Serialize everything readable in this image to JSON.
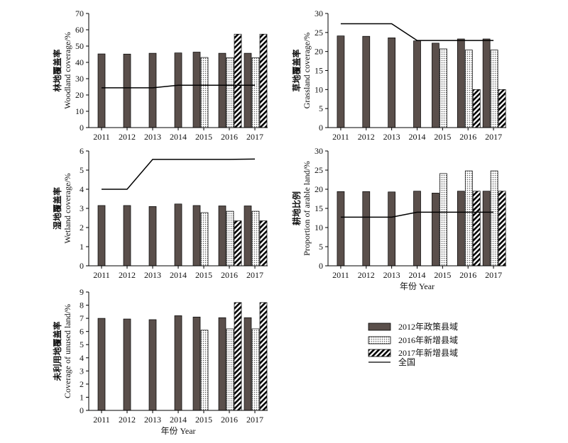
{
  "legend": {
    "items": [
      {
        "label": "2012年政策县域",
        "pattern": "solid"
      },
      {
        "label": "2016年新增县域",
        "pattern": "dots"
      },
      {
        "label": "2017年新增县域",
        "pattern": "hatch"
      },
      {
        "label": "全国",
        "pattern": "line"
      }
    ]
  },
  "colors": {
    "bar_solid": "#5a4f4b",
    "axis": "#000000",
    "hatch": "#000000"
  },
  "chart_data": [
    {
      "type": "bar",
      "ylabel_cn": "林地覆盖率",
      "ylabel_en": "Woodland coverage/%",
      "xlabel": "",
      "categories": [
        "2011",
        "2012",
        "2013",
        "2014",
        "2015",
        "2016",
        "2017"
      ],
      "ylim": [
        0,
        70
      ],
      "yticks": [
        0,
        10,
        20,
        30,
        40,
        50,
        60,
        70
      ],
      "series": [
        {
          "name": "2012年政策县域",
          "values": [
            45.2,
            45.1,
            45.6,
            45.8,
            46.3,
            45.6,
            45.6
          ]
        },
        {
          "name": "2016年新增县域",
          "values": [
            null,
            null,
            null,
            null,
            43.0,
            42.9,
            42.9
          ]
        },
        {
          "name": "2017年新增县域",
          "values": [
            null,
            null,
            null,
            null,
            null,
            57.3,
            57.3
          ]
        }
      ],
      "line": {
        "name": "全国",
        "values": [
          24.4,
          24.4,
          24.4,
          26.0,
          26.0,
          26.0,
          26.0
        ]
      }
    },
    {
      "type": "bar",
      "ylabel_cn": "草地覆盖率",
      "ylabel_en": "Grassland coverage/%",
      "xlabel": "",
      "categories": [
        "2011",
        "2012",
        "2013",
        "2014",
        "2015",
        "2016",
        "2017"
      ],
      "ylim": [
        0,
        30
      ],
      "yticks": [
        0,
        5,
        10,
        15,
        20,
        25,
        30
      ],
      "series": [
        {
          "name": "2012年政策县域",
          "values": [
            24.1,
            24.0,
            23.6,
            22.8,
            22.2,
            23.3,
            23.3
          ]
        },
        {
          "name": "2016年新增县域",
          "values": [
            null,
            null,
            null,
            null,
            20.7,
            20.4,
            20.4
          ]
        },
        {
          "name": "2017年新增县域",
          "values": [
            null,
            null,
            null,
            null,
            null,
            10.0,
            10.0
          ]
        }
      ],
      "line": {
        "name": "全国",
        "values": [
          27.3,
          27.3,
          27.3,
          22.9,
          22.9,
          22.9,
          22.9
        ]
      }
    },
    {
      "type": "bar",
      "ylabel_cn": "湿地覆盖率",
      "ylabel_en": "Wetland coverage/%",
      "xlabel": "",
      "categories": [
        "2011",
        "2012",
        "2013",
        "2014",
        "2015",
        "2016",
        "2017"
      ],
      "ylim": [
        0,
        6
      ],
      "yticks": [
        0,
        1,
        2,
        3,
        4,
        5,
        6
      ],
      "series": [
        {
          "name": "2012年政策县域",
          "values": [
            3.15,
            3.15,
            3.1,
            3.23,
            3.15,
            3.13,
            3.13
          ]
        },
        {
          "name": "2016年新增县域",
          "values": [
            null,
            null,
            null,
            null,
            2.78,
            2.85,
            2.85
          ]
        },
        {
          "name": "2017年新增县域",
          "values": [
            null,
            null,
            null,
            null,
            null,
            2.35,
            2.35
          ]
        }
      ],
      "line": {
        "name": "全国",
        "values": [
          4.0,
          4.0,
          5.56,
          5.56,
          5.56,
          5.56,
          5.58
        ]
      }
    },
    {
      "type": "bar",
      "ylabel_cn": "耕地比例",
      "ylabel_en": "Proportion of arable land/%",
      "xlabel": "年份 Year",
      "categories": [
        "2011",
        "2012",
        "2013",
        "2014",
        "2015",
        "2016",
        "2017"
      ],
      "ylim": [
        0,
        30
      ],
      "yticks": [
        0,
        5,
        10,
        15,
        20,
        25,
        30
      ],
      "series": [
        {
          "name": "2012年政策县域",
          "values": [
            19.4,
            19.4,
            19.3,
            19.5,
            19.0,
            19.5,
            19.5
          ]
        },
        {
          "name": "2016年新增县域",
          "values": [
            null,
            null,
            null,
            null,
            24.1,
            24.8,
            24.8
          ]
        },
        {
          "name": "2017年新增县域",
          "values": [
            null,
            null,
            null,
            null,
            null,
            19.5,
            19.5
          ]
        }
      ],
      "line": {
        "name": "全国",
        "values": [
          12.7,
          12.7,
          12.7,
          14.0,
          14.0,
          14.0,
          14.0
        ]
      }
    },
    {
      "type": "bar",
      "ylabel_cn": "未利用地覆盖率",
      "ylabel_en": "Coverage of unused land/%",
      "xlabel": "年份 Year",
      "categories": [
        "2011",
        "2012",
        "2013",
        "2014",
        "2015",
        "2016",
        "2017"
      ],
      "ylim": [
        0,
        9
      ],
      "yticks": [
        0,
        1,
        2,
        3,
        4,
        5,
        6,
        7,
        8,
        9
      ],
      "series": [
        {
          "name": "2012年政策县域",
          "values": [
            7.0,
            6.95,
            6.9,
            7.2,
            7.1,
            7.05,
            7.05
          ]
        },
        {
          "name": "2016年新增县域",
          "values": [
            null,
            null,
            null,
            null,
            6.1,
            6.2,
            6.2
          ]
        },
        {
          "name": "2017年新增县域",
          "values": [
            null,
            null,
            null,
            null,
            null,
            8.2,
            8.2
          ]
        }
      ],
      "line": null
    }
  ]
}
